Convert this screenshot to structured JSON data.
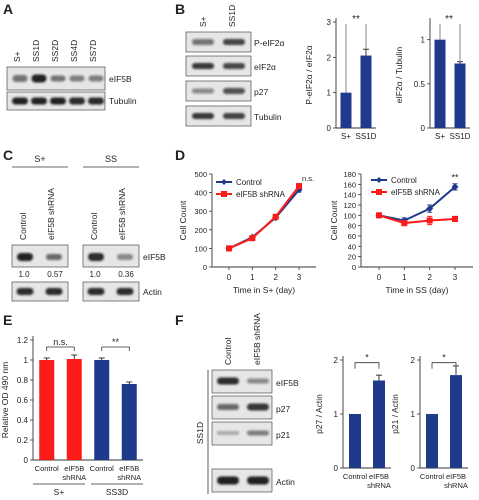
{
  "colors": {
    "navy": "#1f3a8a",
    "red": "#ff1a1a",
    "blot_bg": "#e6e6e6",
    "band": "#151515"
  },
  "panelA": {
    "letter": "A",
    "lanes": [
      "S+",
      "SS1D",
      "SS2D",
      "SS4D",
      "SS7D"
    ],
    "blot_labels": [
      "eIF5B",
      "Tubulin"
    ]
  },
  "panelB": {
    "letter": "B",
    "lanes": [
      "S+",
      "SS1D"
    ],
    "blot_labels": [
      "P-eIF2α",
      "eIF2α",
      "p27",
      "Tubulin"
    ],
    "chart1": {
      "ylabel": "P-eIF2α / eIF2α",
      "yticks": [
        "0",
        "1",
        "2",
        "3"
      ],
      "categories": [
        "S+",
        "SS1D"
      ],
      "sig": "**"
    },
    "chart2": {
      "ylabel": "eIF2α / Tubulin",
      "yticks": [
        "0",
        "0.5",
        "1"
      ],
      "categories": [
        "S+",
        "SS1D"
      ],
      "sig": "**"
    }
  },
  "panelC": {
    "letter": "C",
    "groups": [
      "S+",
      "SS"
    ],
    "lanes": [
      "Control",
      "eIF5B shRNA",
      "Control",
      "eIF5B shRNA"
    ],
    "blot_labels": [
      "eIF5B",
      "Actin"
    ],
    "quant": [
      "1.0",
      "0.57",
      "1.0",
      "0.36"
    ]
  },
  "panelD": {
    "letter": "D",
    "chart1": {
      "ylabel": "Cell Count",
      "xlabel": "Time in S+ (day)",
      "xticks": [
        "0",
        "1",
        "2",
        "3"
      ],
      "yticks": [
        "0",
        "100",
        "200",
        "300",
        "400",
        "500"
      ],
      "legend": [
        "Control",
        "eIF5B shRNA"
      ],
      "sig": "n.s."
    },
    "chart2": {
      "ylabel": "Cell Count",
      "xlabel": "Time in SS (day)",
      "xticks": [
        "0",
        "1",
        "2",
        "3"
      ],
      "yticks": [
        "0",
        "20",
        "40",
        "60",
        "80",
        "100",
        "120",
        "140",
        "160",
        "180"
      ],
      "legend": [
        "Control",
        "eIF5B shRNA"
      ],
      "sig": "**"
    }
  },
  "panelE": {
    "letter": "E",
    "ylabel": "Relative OD 490 nm",
    "yticks": [
      "0",
      "0.2",
      "0.4",
      "0.6",
      "0.8",
      "1",
      "1.2"
    ],
    "bar_labels": [
      "Control",
      "eIF5B shRNA",
      "Control",
      "eIF5B shRNA"
    ],
    "groups": [
      "S+",
      "SS3D"
    ],
    "sig": [
      "n.s.",
      "**"
    ]
  },
  "panelF": {
    "letter": "F",
    "side_label": "SS1D",
    "lanes": [
      "Control",
      "eIF5B shRNA"
    ],
    "blot_labels": [
      "eIF5B",
      "p27",
      "p21",
      "Actin"
    ],
    "chart1": {
      "ylabel": "p27 / Actin",
      "yticks": [
        "0",
        "1",
        "2"
      ],
      "categories": [
        "Control",
        "eIF5B shRNA"
      ],
      "sig": "*"
    },
    "chart2": {
      "ylabel": "p21 / Actin",
      "yticks": [
        "0",
        "1",
        "2"
      ],
      "categories": [
        "Control",
        "eIF5B shRNA"
      ],
      "sig": "*"
    }
  },
  "chart_data": [
    {
      "panel": "B",
      "type": "bar",
      "categories": [
        "S+",
        "SS1D"
      ],
      "values": [
        1.0,
        2.05
      ],
      "errors": [
        0,
        0.18
      ],
      "ylim": [
        0,
        3
      ],
      "ylabel": "P-eIF2α / eIF2α",
      "colors": [
        "#1f3a8a",
        "#1f3a8a"
      ]
    },
    {
      "panel": "B",
      "type": "bar",
      "categories": [
        "S+",
        "SS1D"
      ],
      "values": [
        1.0,
        0.73
      ],
      "errors": [
        0,
        0.02
      ],
      "ylim": [
        0,
        1.2
      ],
      "ylabel": "eIF2α / Tubulin",
      "colors": [
        "#1f3a8a",
        "#1f3a8a"
      ]
    },
    {
      "panel": "D",
      "type": "line",
      "x": [
        0,
        1,
        2,
        3
      ],
      "xlabel": "Time in S+ (day)",
      "ylabel": "Cell Count",
      "ylim": [
        0,
        500
      ],
      "series": [
        {
          "name": "Control",
          "values": [
            100,
            160,
            265,
            415
          ],
          "errors": [
            3,
            6,
            8,
            12
          ],
          "color": "#1f3a8a"
        },
        {
          "name": "eIF5B shRNA",
          "values": [
            100,
            155,
            270,
            435
          ],
          "errors": [
            3,
            6,
            8,
            10
          ],
          "color": "#ff1a1a"
        }
      ]
    },
    {
      "panel": "D",
      "type": "line",
      "x": [
        0,
        1,
        2,
        3
      ],
      "xlabel": "Time in SS (day)",
      "ylabel": "Cell Count",
      "ylim": [
        0,
        180
      ],
      "series": [
        {
          "name": "Control",
          "values": [
            100,
            90,
            113,
            155
          ],
          "errors": [
            3,
            5,
            7,
            6
          ],
          "color": "#1f3a8a"
        },
        {
          "name": "eIF5B shRNA",
          "values": [
            100,
            85,
            90,
            93
          ],
          "errors": [
            3,
            5,
            8,
            5
          ],
          "color": "#ff1a1a"
        }
      ]
    },
    {
      "panel": "E",
      "type": "bar",
      "categories": [
        "Control",
        "eIF5B shRNA",
        "Control",
        "eIF5B shRNA"
      ],
      "values": [
        1.0,
        1.01,
        1.0,
        0.76
      ],
      "errors": [
        0.02,
        0.04,
        0.02,
        0.02
      ],
      "ylim": [
        0,
        1.2
      ],
      "ylabel": "Relative OD 490 nm",
      "colors": [
        "#ff1a1a",
        "#ff1a1a",
        "#1f3a8a",
        "#1f3a8a"
      ]
    },
    {
      "panel": "F",
      "type": "bar",
      "categories": [
        "Control",
        "eIF5B shRNA"
      ],
      "values": [
        1.0,
        1.62
      ],
      "errors": [
        0,
        0.1
      ],
      "ylim": [
        0,
        2
      ],
      "ylabel": "p27 / Actin",
      "colors": [
        "#1f3a8a",
        "#1f3a8a"
      ]
    },
    {
      "panel": "F",
      "type": "bar",
      "categories": [
        "Control",
        "eIF5B shRNA"
      ],
      "values": [
        1.0,
        1.72
      ],
      "errors": [
        0,
        0.17
      ],
      "ylim": [
        0,
        2
      ],
      "ylabel": "p21 / Actin",
      "colors": [
        "#1f3a8a",
        "#1f3a8a"
      ]
    }
  ]
}
